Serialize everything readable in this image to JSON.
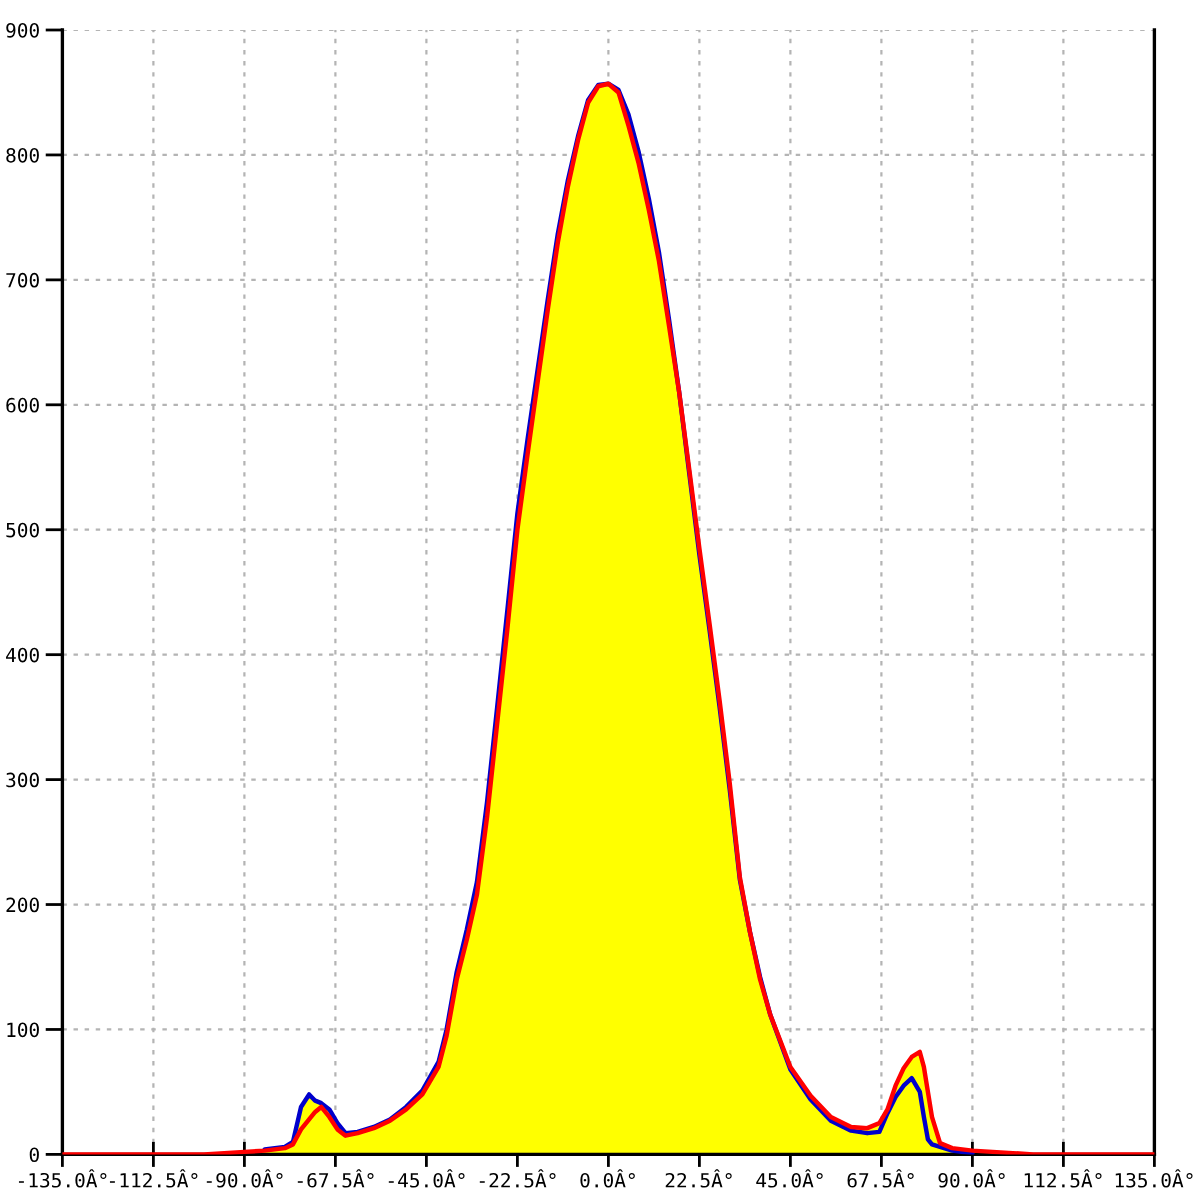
{
  "chart_data": {
    "type": "line",
    "x": [
      -135,
      -100,
      -95,
      -90,
      -85,
      -80,
      -78,
      -76,
      -74,
      -72.5,
      -71,
      -69,
      -67,
      -65,
      -62,
      -58,
      -54,
      -50,
      -46,
      -42,
      -40,
      -37.5,
      -35,
      -32.5,
      -30,
      -27.5,
      -25,
      -22.5,
      -20,
      -17.5,
      -15,
      -12.5,
      -10,
      -7.5,
      -5,
      -2.5,
      0,
      2.5,
      5,
      7.5,
      10,
      12.5,
      15,
      17.5,
      20,
      22.5,
      25,
      27.5,
      30,
      32.5,
      35,
      37.5,
      40,
      45,
      50,
      55,
      60,
      64,
      67,
      69,
      71,
      73,
      75,
      77,
      78,
      79,
      80,
      82,
      85,
      90,
      95,
      100,
      105,
      135
    ],
    "series": [
      {
        "type": "area",
        "color": "#ffff00",
        "values": [
          null,
          0,
          1,
          2,
          4,
          6,
          10,
          38,
          48,
          43,
          41,
          36,
          25,
          17,
          18,
          22,
          28,
          38,
          51,
          74,
          100,
          146,
          180,
          218,
          282,
          358,
          435,
          513,
          572,
          628,
          684,
          737,
          780,
          815,
          844,
          856,
          857,
          852,
          832,
          802,
          765,
          722,
          668,
          610,
          548,
          485,
          425,
          363,
          297,
          222,
          178,
          142,
          112,
          70,
          47,
          30,
          22,
          21,
          25,
          36,
          55,
          69,
          78,
          82,
          70,
          50,
          30,
          9,
          5,
          3,
          2,
          1,
          0,
          null
        ]
      },
      {
        "color": "#0000cc",
        "values": [
          null,
          null,
          null,
          null,
          4,
          6,
          10,
          38,
          48,
          43,
          41,
          36,
          25,
          17,
          18,
          22,
          28,
          38,
          51,
          74,
          100,
          146,
          180,
          218,
          282,
          358,
          435,
          513,
          572,
          628,
          684,
          737,
          780,
          815,
          844,
          856,
          857,
          852,
          832,
          802,
          765,
          722,
          668,
          610,
          545,
          480,
          420,
          358,
          292,
          220,
          178,
          142,
          112,
          68,
          44,
          27,
          19,
          17,
          18,
          33,
          46,
          55,
          61,
          50,
          30,
          12,
          8,
          6,
          3,
          1,
          null,
          null,
          null,
          null
        ]
      },
      {
        "color": "#ff0000",
        "values": [
          0,
          0,
          1,
          2,
          3,
          5,
          8,
          20,
          28,
          34,
          38,
          30,
          20,
          15,
          17,
          21,
          27,
          36,
          48,
          70,
          95,
          140,
          172,
          208,
          270,
          345,
          420,
          500,
          560,
          618,
          676,
          730,
          775,
          812,
          842,
          855,
          857,
          850,
          823,
          793,
          756,
          715,
          663,
          610,
          548,
          485,
          425,
          363,
          297,
          222,
          178,
          140,
          112,
          70,
          47,
          30,
          22,
          21,
          25,
          36,
          55,
          69,
          78,
          82,
          70,
          50,
          30,
          9,
          5,
          3,
          2,
          1,
          0,
          0
        ]
      }
    ],
    "xlim": [
      -135,
      135
    ],
    "xticks": [
      {
        "value": -135,
        "label": "-135.0Â°"
      },
      {
        "value": -112.5,
        "label": "-112.5Â°"
      },
      {
        "value": -90,
        "label": "-90.0Â°"
      },
      {
        "value": -67.5,
        "label": "-67.5Â°"
      },
      {
        "value": -45,
        "label": "-45.0Â°"
      },
      {
        "value": -22.5,
        "label": "-22.5Â°"
      },
      {
        "value": 0,
        "label": "0.0Â°"
      },
      {
        "value": 22.5,
        "label": "22.5Â°"
      },
      {
        "value": 45,
        "label": "45.0Â°"
      },
      {
        "value": 67.5,
        "label": "67.5Â°"
      },
      {
        "value": 90,
        "label": "90.0Â°"
      },
      {
        "value": 112.5,
        "label": "112.5Â°"
      },
      {
        "value": 135,
        "label": "135.0Â°"
      }
    ],
    "ylim": [
      0,
      900
    ],
    "yticks": [
      0,
      100,
      200,
      300,
      400,
      500,
      600,
      700,
      800,
      900
    ],
    "grid": true,
    "line_style": "solid"
  }
}
